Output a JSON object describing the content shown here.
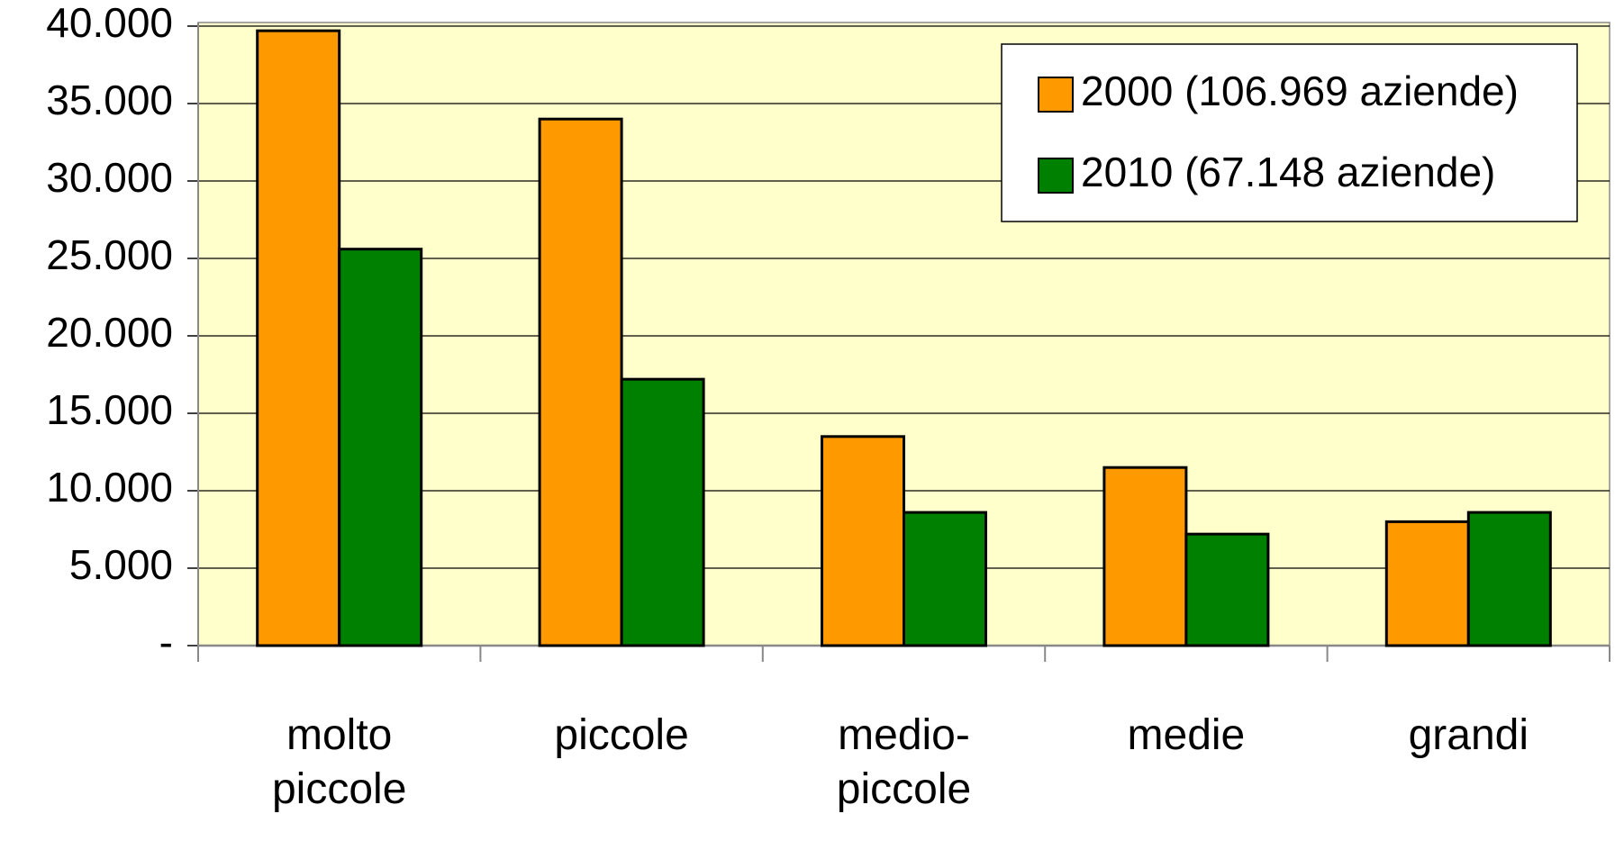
{
  "chart_data": {
    "type": "bar",
    "categories": [
      "molto piccole",
      "piccole",
      "medio-piccole",
      "medie",
      "grandi"
    ],
    "series": [
      {
        "name": "2000 (106.969 aziende)",
        "color": "#ff9900",
        "values": [
          39700,
          34000,
          13500,
          11500,
          8000
        ]
      },
      {
        "name": "2010 (67.148 aziende)",
        "color": "#008000",
        "values": [
          25600,
          17200,
          8600,
          7200,
          8600
        ]
      }
    ],
    "ylim": [
      0,
      40000
    ],
    "yticks": [
      {
        "value": 0,
        "label": "-"
      },
      {
        "value": 5000,
        "label": "5.000"
      },
      {
        "value": 10000,
        "label": "10.000"
      },
      {
        "value": 15000,
        "label": "15.000"
      },
      {
        "value": 20000,
        "label": "20.000"
      },
      {
        "value": 25000,
        "label": "25.000"
      },
      {
        "value": 30000,
        "label": "30.000"
      },
      {
        "value": 35000,
        "label": "35.000"
      },
      {
        "value": 40000,
        "label": "40.000"
      }
    ],
    "grid": true,
    "plot_background": "#ffffcc",
    "legend": "upper right"
  }
}
